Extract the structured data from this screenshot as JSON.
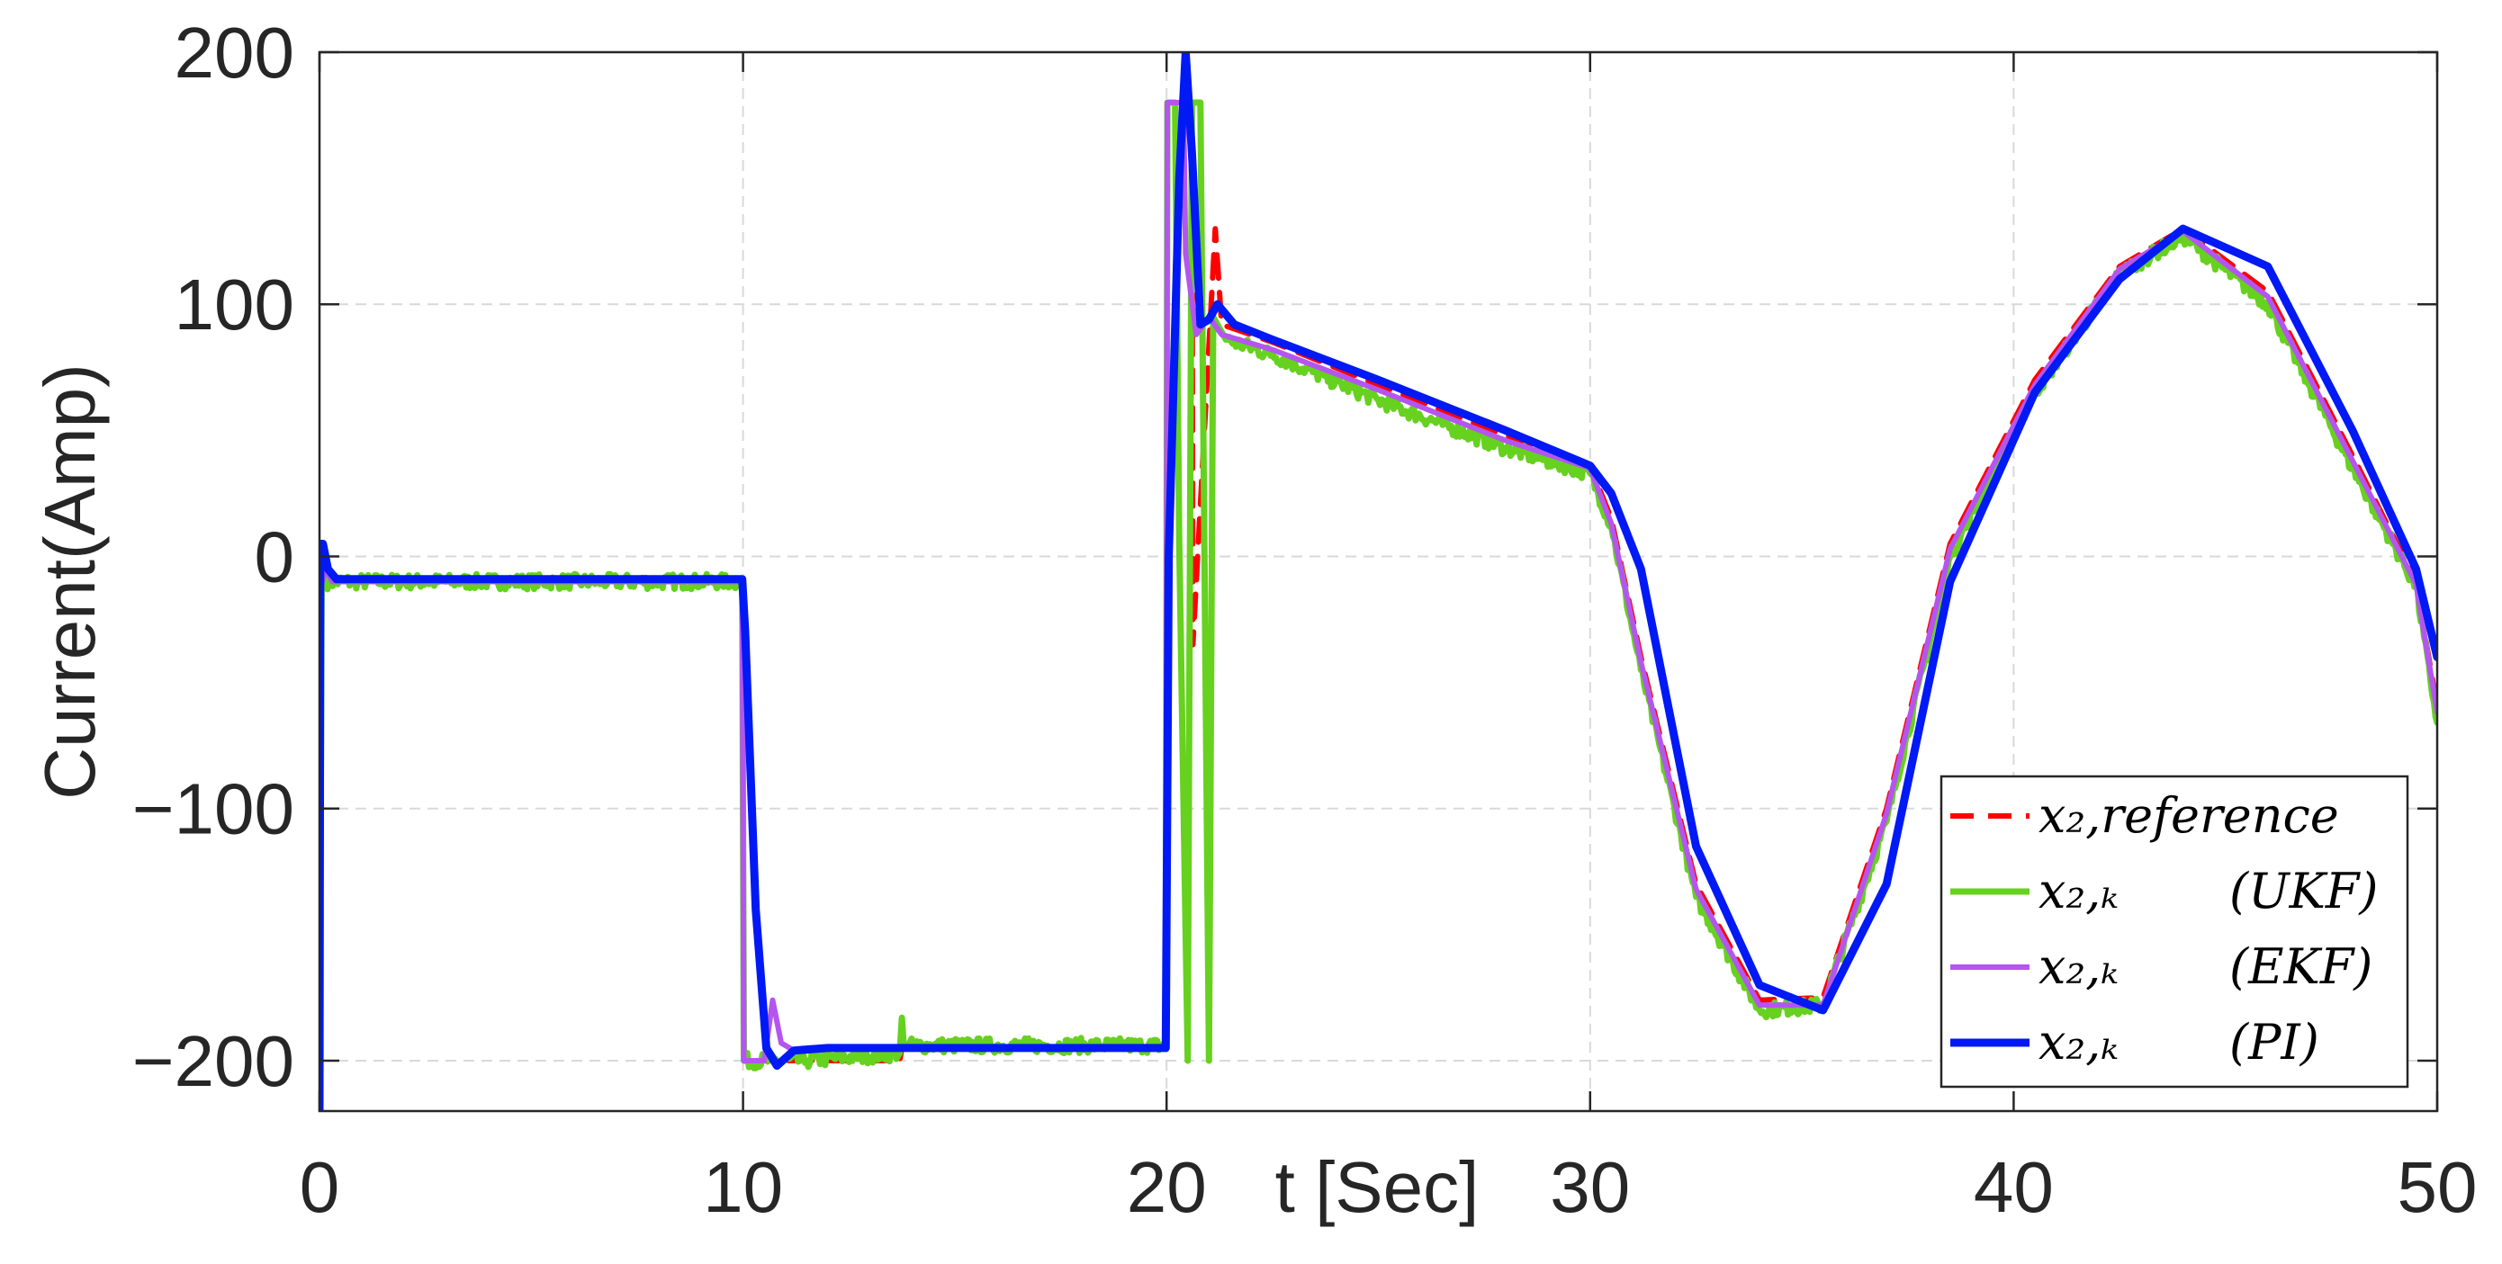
{
  "chart_data": {
    "type": "line",
    "title": "",
    "xlabel": "t [Sec]",
    "ylabel": "Current(Amp)",
    "xlim": [
      0,
      50
    ],
    "ylim": [
      -220,
      200
    ],
    "xticks": [
      0,
      10,
      20,
      30,
      40,
      50
    ],
    "yticks": [
      -200,
      -100,
      0,
      100,
      200
    ],
    "xtick_labels": [
      "0",
      "10",
      "20",
      "30",
      "40",
      "50"
    ],
    "ytick_labels": [
      "−200",
      "−100",
      "0",
      "100",
      "200"
    ],
    "grid": true,
    "legend_position": "bottom-right",
    "series": [
      {
        "name": "x₂, reference",
        "legend_label": "x₂,reference",
        "color": "#ff0000",
        "style": "dashed",
        "x": [
          0,
          0.05,
          0.15,
          9.98,
          10.02,
          12.2,
          13.7,
          13.75,
          19.98,
          20.02,
          20.2,
          20.6,
          20.62,
          21.15,
          21.3,
          22.5,
          25,
          28,
          30,
          30.5,
          31.2,
          32.5,
          34,
          35.5,
          37,
          38.5,
          40.5,
          42.5,
          44,
          46,
          48,
          49.5,
          50
        ],
        "y": [
          -220,
          -10,
          -10,
          -10,
          -200,
          -200,
          -200,
          -195,
          -195,
          180,
          180,
          180,
          -35,
          130,
          92,
          85,
          68,
          48,
          36,
          15,
          -40,
          -130,
          -176,
          -175,
          -100,
          5,
          70,
          115,
          130,
          105,
          40,
          -10,
          -60
        ]
      },
      {
        "name": "x₂,ₖ (UKF)",
        "legend_sub": "x₂,ₖ",
        "legend_label": "(UKF)",
        "color": "#66d11f",
        "style": "solid",
        "x": [
          0,
          0.05,
          0.15,
          9.98,
          10.02,
          11.5,
          13.7,
          13.75,
          13.8,
          13.9,
          19.98,
          20.02,
          20.2,
          20.3,
          20.5,
          20.6,
          20.8,
          21.0,
          21.1,
          21.4,
          22.5,
          25,
          28,
          30,
          30.5,
          31.2,
          32.5,
          34,
          35.5,
          37,
          38.5,
          40.5,
          42.5,
          44,
          46,
          48,
          49.5,
          50
        ],
        "y": [
          -220,
          -10,
          -10,
          -10,
          -200,
          -200,
          -197,
          -183,
          -195,
          -194,
          -194,
          180,
          180,
          5,
          -200,
          180,
          180,
          -200,
          95,
          86,
          80,
          62,
          43,
          33,
          12,
          -45,
          -135,
          -180,
          -178,
          -105,
          0,
          65,
          112,
          127,
          100,
          35,
          -12,
          -66
        ],
        "noise": true
      },
      {
        "name": "x₂,ₖ (EKF)",
        "legend_sub": "x₂,ₖ",
        "legend_label": "(EKF)",
        "color": "#b455f0",
        "style": "solid",
        "x": [
          0,
          0.03,
          0.15,
          0.3,
          9.98,
          10.02,
          10.5,
          10.7,
          10.9,
          11.2,
          12,
          19.98,
          20.02,
          20.4,
          20.45,
          20.7,
          21,
          21.3,
          22.5,
          25,
          28,
          30,
          30.5,
          31.2,
          32.5,
          34,
          35.5,
          37,
          38.5,
          40.5,
          42.5,
          44,
          46,
          48,
          49.5,
          50
        ],
        "y": [
          -220,
          -12,
          -5,
          -10,
          -10,
          -200,
          -200,
          -176,
          -193,
          -196,
          -195,
          -195,
          180,
          180,
          120,
          88,
          95,
          88,
          82,
          66,
          46,
          35,
          13,
          -42,
          -132,
          -178,
          -178,
          -102,
          3,
          68,
          114,
          129,
          103,
          38,
          -11,
          -62
        ]
      },
      {
        "name": "x₂,ₖ (PI)",
        "legend_sub": "x₂,ₖ",
        "legend_label": "(PI)",
        "color": "#0019f5",
        "style": "solid",
        "x": [
          0,
          0.02,
          0.08,
          0.2,
          0.4,
          9.98,
          10.05,
          10.3,
          10.55,
          10.8,
          11.2,
          12,
          19.98,
          20.05,
          20.3,
          20.45,
          20.6,
          20.8,
          21.0,
          21.2,
          21.6,
          22.5,
          25,
          28,
          30,
          30.5,
          31.2,
          32.5,
          34,
          35.5,
          37,
          38.5,
          40.5,
          42.5,
          44,
          46,
          48,
          49.5,
          50
        ],
        "y": [
          -220,
          5,
          5,
          -5,
          -9,
          -9,
          -30,
          -140,
          -195,
          -202,
          -196,
          -195,
          -195,
          0,
          150,
          200,
          160,
          92,
          94,
          100,
          92,
          86,
          70,
          50,
          36,
          25,
          -5,
          -115,
          -170,
          -180,
          -130,
          -10,
          65,
          110,
          130,
          115,
          50,
          -5,
          -40
        ]
      }
    ]
  }
}
